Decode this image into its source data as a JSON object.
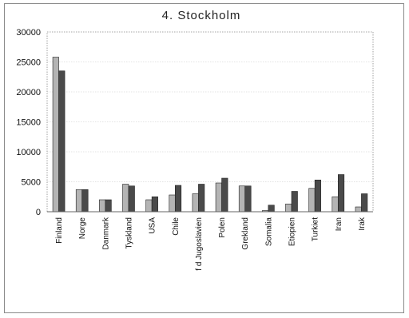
{
  "chart_data": {
    "type": "bar",
    "title": "4.  Stockholm",
    "xlabel": "",
    "ylabel": "",
    "ylim": [
      0,
      30000
    ],
    "yticks": [
      0,
      5000,
      10000,
      15000,
      20000,
      25000,
      30000
    ],
    "grid": true,
    "legend": "none",
    "categories": [
      "Finland",
      "Norge",
      "Danmark",
      "Tyskland",
      "USA",
      "Chile",
      "f d Jugoslavien",
      "Polen",
      "Grekland",
      "Somalia",
      "Etiopien",
      "Turkiet",
      "Iran",
      "Irak"
    ],
    "series": [
      {
        "values": [
          25800,
          3700,
          2000,
          4600,
          2000,
          2800,
          3000,
          4800,
          4300,
          200,
          1300,
          3900,
          2500,
          800
        ],
        "color": "#b4b4b4"
      },
      {
        "values": [
          23500,
          3700,
          2000,
          4300,
          2500,
          4400,
          4600,
          5600,
          4300,
          1100,
          3400,
          5300,
          6200,
          3000
        ],
        "color": "#4a4a4a"
      }
    ]
  }
}
